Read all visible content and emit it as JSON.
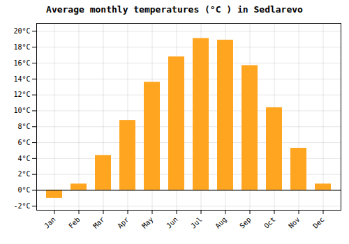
{
  "chart_data": {
    "type": "bar",
    "title": "Average monthly temperatures (°C ) in Sedlarevo",
    "categories": [
      "Jan",
      "Feb",
      "Mar",
      "Apr",
      "May",
      "Jun",
      "Jul",
      "Aug",
      "Sep",
      "Oct",
      "Nov",
      "Dec"
    ],
    "values": [
      -1.0,
      0.8,
      4.4,
      8.8,
      13.6,
      16.8,
      19.1,
      18.9,
      15.7,
      10.4,
      5.3,
      0.8
    ],
    "color": "#FFA520",
    "ylim": [
      -2.5,
      21
    ],
    "yticks": [
      {
        "value": -2,
        "label": "-2°C"
      },
      {
        "value": 0,
        "label": "0°C"
      },
      {
        "value": 2,
        "label": "2°C"
      },
      {
        "value": 4,
        "label": "4°C"
      },
      {
        "value": 6,
        "label": "6°C"
      },
      {
        "value": 8,
        "label": "8°C"
      },
      {
        "value": 10,
        "label": "10°C"
      },
      {
        "value": 12,
        "label": "12°C"
      },
      {
        "value": 14,
        "label": "14°C"
      },
      {
        "value": 16,
        "label": "16°C"
      },
      {
        "value": 18,
        "label": "18°C"
      },
      {
        "value": 20,
        "label": "20°C"
      }
    ],
    "grid": true
  }
}
